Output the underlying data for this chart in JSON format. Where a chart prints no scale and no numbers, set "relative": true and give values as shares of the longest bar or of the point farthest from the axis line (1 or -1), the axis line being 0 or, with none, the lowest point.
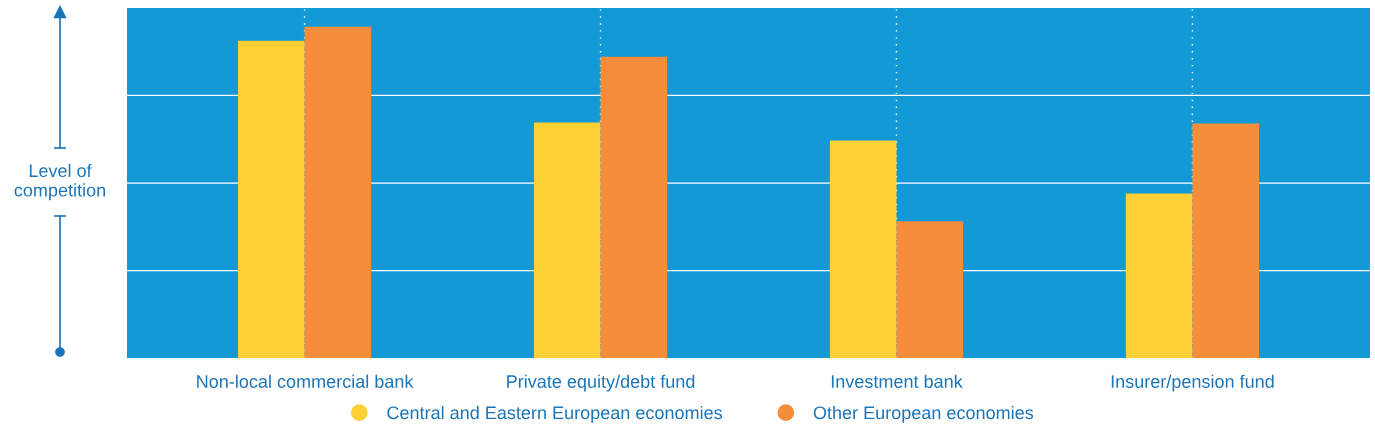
{
  "chart_data": {
    "type": "bar",
    "relative": true,
    "ylabel": "Level of\ncompetition",
    "categories": [
      "Non-local commercial bank",
      "Private equity/debt fund",
      "Investment bank",
      "Insurer/pension fund"
    ],
    "series": [
      {
        "name": "Central and Eastern European economies",
        "color": "#fdd035",
        "values": [
          0.958,
          0.711,
          0.657,
          0.497
        ]
      },
      {
        "name": "Other European economies",
        "color": "#f58d3a",
        "values": [
          1,
          0.91,
          0.413,
          0.708
        ]
      }
    ],
    "grid": true,
    "legend": "bottom"
  }
}
